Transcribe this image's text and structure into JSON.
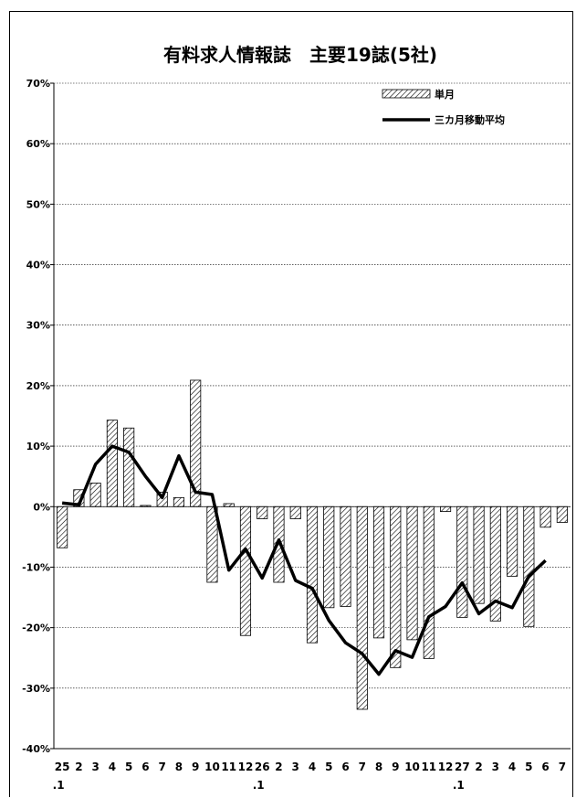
{
  "chart_data": {
    "type": "bar",
    "title": "有料求人情報誌　主要19誌(5社)",
    "categories": [
      "25.1",
      "2",
      "3",
      "4",
      "5",
      "6",
      "7",
      "8",
      "9",
      "10",
      "11",
      "12",
      "26.1",
      "2",
      "3",
      "4",
      "5",
      "6",
      "7",
      "8",
      "9",
      "10",
      "11",
      "12",
      "27.1",
      "2",
      "3",
      "4",
      "5",
      "6",
      "7"
    ],
    "x_tick_labels": [
      "25",
      "2",
      "3",
      "4",
      "5",
      "6",
      "7",
      "8",
      "9",
      "10",
      "11",
      "12",
      "26",
      "2",
      "3",
      "4",
      "5",
      "6",
      "7",
      "8",
      "9",
      "10",
      "11",
      "12",
      "27",
      "2",
      "3",
      "4",
      "5",
      "6",
      "7"
    ],
    "x_year_labels": [
      {
        "index": 0,
        "text": ".1"
      },
      {
        "index": 12,
        "text": ".1"
      },
      {
        "index": 24,
        "text": ".1"
      }
    ],
    "ylim": [
      -40,
      70
    ],
    "yticks": [
      -40,
      -30,
      -20,
      -10,
      0,
      10,
      20,
      30,
      40,
      50,
      60,
      70
    ],
    "ytick_labels": [
      "-40%",
      "-30%",
      "-20%",
      "-10%",
      "0%",
      "10%",
      "20%",
      "30%",
      "40%",
      "50%",
      "60%",
      "70%"
    ],
    "grid": true,
    "legend_position": "top-right",
    "series": [
      {
        "name": "単月",
        "type": "bar",
        "pattern": "diagonal-hatch",
        "values": [
          -6.8,
          2.8,
          3.9,
          14.3,
          13.0,
          0.2,
          2.4,
          1.5,
          20.9,
          -12.5,
          0.5,
          -21.3,
          -2.0,
          -12.5,
          -2.0,
          -22.5,
          -16.7,
          -16.5,
          -33.5,
          -21.7,
          -26.6,
          -22.0,
          -25.1,
          -0.8,
          -18.3,
          -16.0,
          -18.9,
          -11.5,
          -19.8,
          -3.4,
          -2.6
        ]
      },
      {
        "name": "三カ月移動平均",
        "type": "line",
        "color": "#000000",
        "values": [
          0.6,
          0.3,
          7.0,
          10.0,
          9.0,
          5.0,
          1.5,
          8.4,
          2.4,
          2.0,
          -10.5,
          -7.0,
          -11.8,
          -5.5,
          -12.2,
          -13.5,
          -18.8,
          -22.5,
          -24.3,
          -27.7,
          -23.8,
          -24.9,
          -18.2,
          -16.5,
          -12.6,
          -17.7,
          -15.6,
          -16.7,
          -11.5,
          -8.9,
          null
        ]
      }
    ]
  },
  "colors": {
    "line": "#000000",
    "bar_fill": "#ffffff",
    "hatch": "#000000",
    "grid": "#000000"
  }
}
